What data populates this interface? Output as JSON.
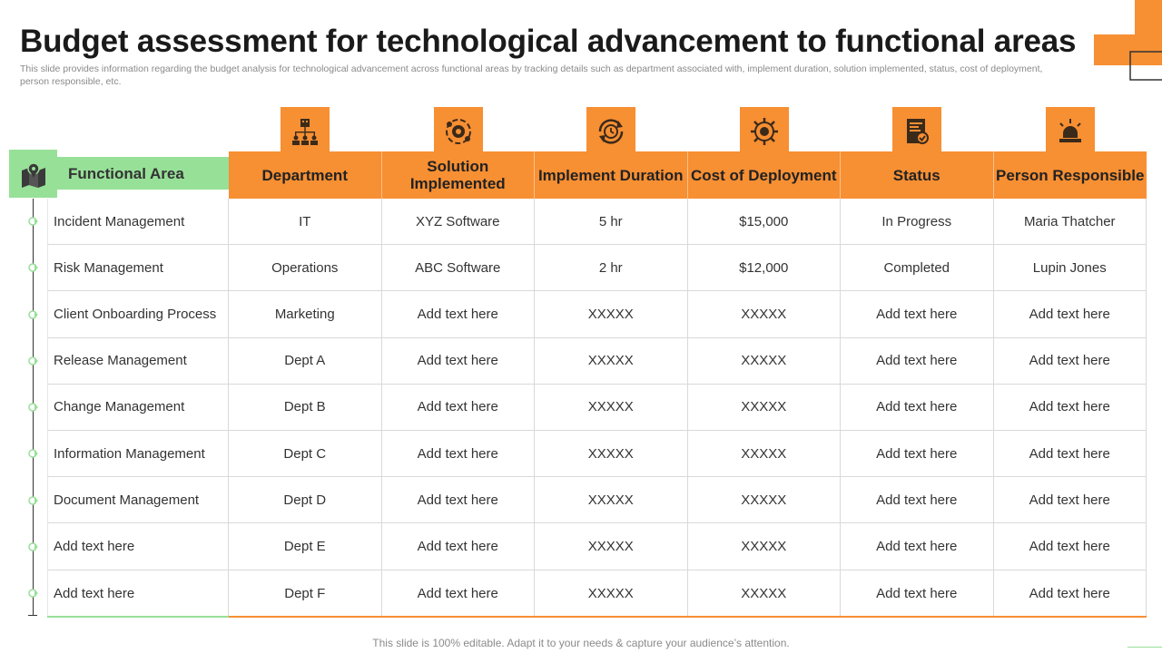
{
  "title": "Budget assessment for technological advancement to functional areas",
  "subtitle": "This slide provides information regarding the budget analysis for technological advancement across functional areas by tracking details such as department associated with, implement duration, solution implemented, status, cost of deployment, person responsible, etc.",
  "colors": {
    "accent": "#f78f33",
    "green": "#97e098"
  },
  "functional_area_header": {
    "label": "Functional Area",
    "icon": "map-pin-icon"
  },
  "columns": [
    {
      "label": "Department",
      "icon": "org-chart-icon"
    },
    {
      "label": "Solution Implemented",
      "icon": "gear-cycle-icon"
    },
    {
      "label": "Implement Duration",
      "icon": "clock-cycle-icon"
    },
    {
      "label": "Cost of Deployment",
      "icon": "settings-wheel-icon"
    },
    {
      "label": "Status",
      "icon": "document-check-icon"
    },
    {
      "label": "Person Responsible",
      "icon": "alert-light-icon"
    }
  ],
  "rows": [
    [
      "Incident Management",
      "IT",
      "XYZ Software",
      "5 hr",
      "$15,000",
      "In Progress",
      "Maria Thatcher"
    ],
    [
      "Risk Management",
      "Operations",
      "ABC Software",
      "2 hr",
      "$12,000",
      "Completed",
      "Lupin Jones"
    ],
    [
      "Client Onboarding Process",
      "Marketing",
      "Add text here",
      "XXXXX",
      "XXXXX",
      "Add text here",
      "Add text here"
    ],
    [
      "Release Management",
      "Dept A",
      "Add text here",
      "XXXXX",
      "XXXXX",
      "Add text here",
      "Add text here"
    ],
    [
      "Change Management",
      "Dept B",
      "Add text here",
      "XXXXX",
      "XXXXX",
      "Add text here",
      "Add text here"
    ],
    [
      "Information Management",
      "Dept C",
      "Add text here",
      "XXXXX",
      "XXXXX",
      "Add text here",
      "Add text here"
    ],
    [
      "Document Management",
      "Dept D",
      "Add text here",
      "XXXXX",
      "XXXXX",
      "Add text here",
      "Add text here"
    ],
    [
      "Add text here",
      "Dept E",
      "Add text here",
      "XXXXX",
      "XXXXX",
      "Add text here",
      "Add text here"
    ],
    [
      "Add text here",
      "Dept F",
      "Add text here",
      "XXXXX",
      "XXXXX",
      "Add text here",
      "Add text here"
    ]
  ],
  "footer": "This slide is 100% editable. Adapt it to your needs & capture your audience’s attention."
}
